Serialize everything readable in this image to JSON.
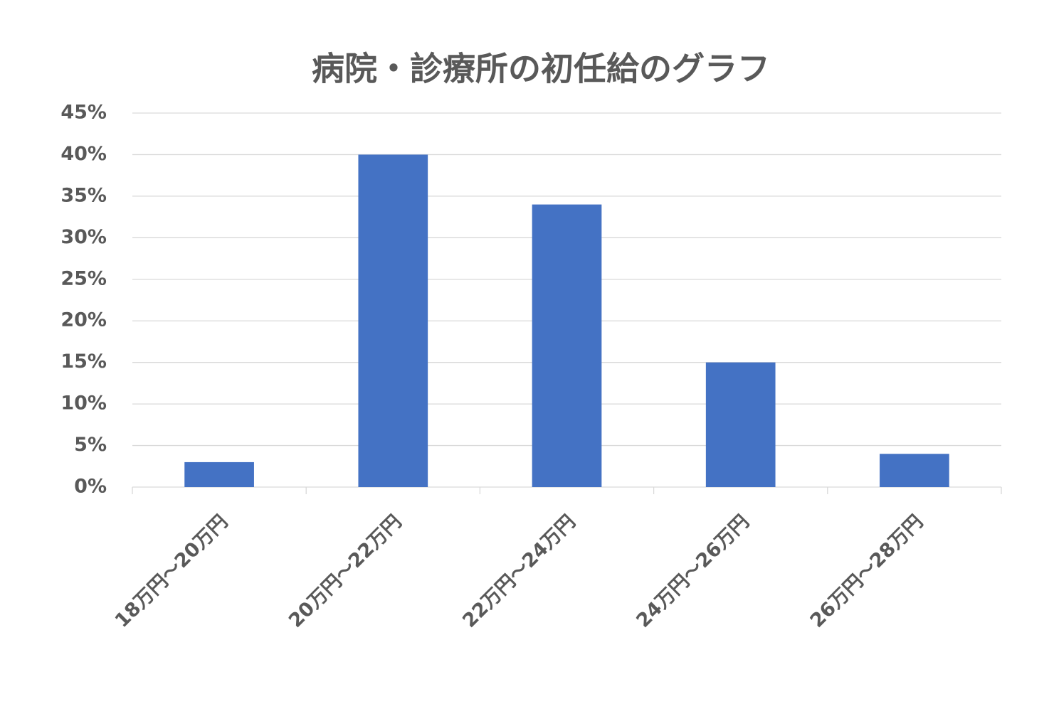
{
  "chart_data": {
    "type": "bar",
    "title": "病院・診療所の初任給のグラフ",
    "categories": [
      "18万円～20万円",
      "20万円～22万円",
      "22万円～24万円",
      "24万円～26万円",
      "26万円～28万円"
    ],
    "values": [
      3,
      40,
      34,
      15,
      4
    ],
    "color": "#4472c4",
    "ylim": [
      0,
      45
    ],
    "yticks": [
      {
        "value": 0,
        "label": "0%"
      },
      {
        "value": 5,
        "label": "5%"
      },
      {
        "value": 10,
        "label": "10%"
      },
      {
        "value": 15,
        "label": "15%"
      },
      {
        "value": 20,
        "label": "20%"
      },
      {
        "value": 25,
        "label": "25%"
      },
      {
        "value": 30,
        "label": "30%"
      },
      {
        "value": 35,
        "label": "35%"
      },
      {
        "value": 40,
        "label": "40%"
      },
      {
        "value": 45,
        "label": "45%"
      }
    ],
    "grid": true
  }
}
